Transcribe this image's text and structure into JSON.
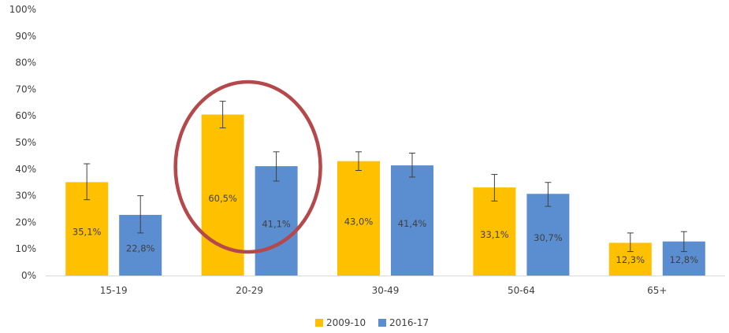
{
  "chart_data": {
    "type": "bar",
    "title": "",
    "xlabel": "",
    "ylabel": "",
    "ylim": [
      0,
      100
    ],
    "y_ticks": [
      "0%",
      "10%",
      "20%",
      "30%",
      "40%",
      "50%",
      "60%",
      "70%",
      "80%",
      "90%",
      "100%"
    ],
    "categories": [
      "15-19",
      "20-29",
      "30-49",
      "50-64",
      "65+"
    ],
    "series": [
      {
        "name": "2009-10",
        "color": "#ffc000",
        "values": [
          35.1,
          60.5,
          43.0,
          33.1,
          12.3
        ],
        "labels": [
          "35,1%",
          "60,5%",
          "43,0%",
          "33,1%",
          "12,3%"
        ],
        "error_low": [
          28.5,
          55.5,
          39.5,
          28.0,
          9.0
        ],
        "error_high": [
          42.0,
          65.5,
          46.5,
          38.0,
          16.0
        ]
      },
      {
        "name": "2016-17",
        "color": "#5b8ed0",
        "values": [
          22.8,
          41.1,
          41.4,
          30.7,
          12.8
        ],
        "labels": [
          "22,8%",
          "41,1%",
          "41,4%",
          "30,7%",
          "12,8%"
        ],
        "error_low": [
          16.0,
          35.5,
          37.0,
          26.0,
          9.0
        ],
        "error_high": [
          30.0,
          46.5,
          46.0,
          35.0,
          16.5
        ]
      }
    ],
    "grid": false,
    "legend": "bottom-center",
    "highlight": {
      "category": "20-29",
      "shape": "ellipse",
      "color": "#b5484a"
    }
  }
}
